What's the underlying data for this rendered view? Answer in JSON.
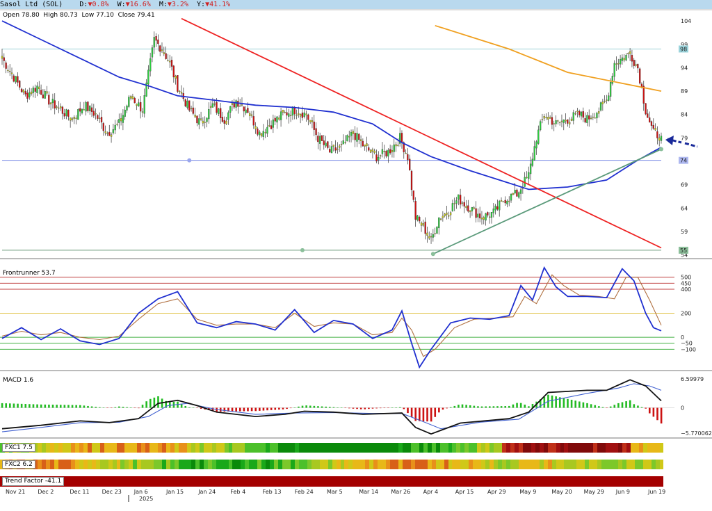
{
  "header": {
    "symbol_title": "Sasol Ltd (SOL)",
    "d_label": "D:",
    "d_value": "▼0.8%",
    "w_label": "W:",
    "w_value": "▼16.6%",
    "m_label": "M:",
    "m_value": "▼3.2%",
    "y_label": "Y:",
    "y_value": "▼41.1%"
  },
  "ohlc": {
    "open_label": "Open",
    "open": "78.80",
    "high_label": "High",
    "high": "80.73",
    "low_label": "Low",
    "low": "77.10",
    "close_label": "Close",
    "close": "79.41"
  },
  "colors": {
    "up": "#2ecc40",
    "neutral": "#c8c818",
    "down": "#cc1111",
    "ma_short": "#2030d0",
    "ma_long": "#f0a020",
    "trendline_red": "#ee2222",
    "trendline_green": "#5a9a7a",
    "fr_fast": "#2030d0",
    "fr_slow": "#b07040",
    "macd_line": "#111111",
    "signal_line": "#4060d0",
    "trend_bar": "#a40000"
  },
  "chart_data": [
    {
      "type": "candlestick",
      "panel": "price",
      "title": "Sasol Ltd (SOL)",
      "yticks": [
        104,
        99,
        94,
        89,
        84,
        79,
        74,
        69,
        64,
        59,
        54
      ],
      "ylim": [
        53.5,
        105.5
      ],
      "price_tags": [
        "98",
        "74",
        "55"
      ],
      "xticks": [
        "Nov 21",
        "Dec 2",
        "Dec 11",
        "Dec 23",
        "Jan 6",
        "Jan 15",
        "Jan 24",
        "Feb 4",
        "Feb 13",
        "Feb 24",
        "Mar 5",
        "Mar 14",
        "Mar 26",
        "Apr 4",
        "Apr 15",
        "Apr 29",
        "May 9",
        "May 20",
        "May 29",
        "Jun 9",
        "Jun 19"
      ],
      "year_label": "2025",
      "close_anchors": [
        [
          0,
          96
        ],
        [
          6,
          92
        ],
        [
          12,
          88
        ],
        [
          18,
          90
        ],
        [
          24,
          87
        ],
        [
          30,
          85
        ],
        [
          36,
          83
        ],
        [
          42,
          86
        ],
        [
          48,
          84
        ],
        [
          54,
          80
        ],
        [
          60,
          82
        ],
        [
          66,
          88
        ],
        [
          72,
          85
        ],
        [
          78,
          100
        ],
        [
          82,
          98
        ],
        [
          86,
          95
        ],
        [
          90,
          90
        ],
        [
          96,
          85
        ],
        [
          102,
          82
        ],
        [
          108,
          86
        ],
        [
          114,
          83
        ],
        [
          120,
          87
        ],
        [
          126,
          85
        ],
        [
          132,
          80
        ],
        [
          138,
          82
        ],
        [
          144,
          84
        ],
        [
          150,
          85
        ],
        [
          156,
          84
        ],
        [
          162,
          79
        ],
        [
          168,
          76
        ],
        [
          174,
          77
        ],
        [
          180,
          80
        ],
        [
          186,
          77
        ],
        [
          192,
          75
        ],
        [
          198,
          76
        ],
        [
          204,
          79
        ],
        [
          208,
          75
        ],
        [
          212,
          62
        ],
        [
          216,
          60
        ],
        [
          220,
          57
        ],
        [
          224,
          62
        ],
        [
          228,
          63
        ],
        [
          234,
          66
        ],
        [
          240,
          64
        ],
        [
          246,
          62
        ],
        [
          252,
          63
        ],
        [
          258,
          66
        ],
        [
          264,
          67
        ],
        [
          270,
          71
        ],
        [
          274,
          79
        ],
        [
          278,
          84
        ],
        [
          284,
          82
        ],
        [
          290,
          83
        ],
        [
          296,
          84
        ],
        [
          300,
          83
        ],
        [
          306,
          85
        ],
        [
          310,
          87
        ],
        [
          314,
          95
        ],
        [
          318,
          96
        ],
        [
          322,
          97
        ],
        [
          326,
          94
        ],
        [
          330,
          85
        ],
        [
          334,
          80
        ],
        [
          338,
          79.4
        ]
      ],
      "series": [
        {
          "name": "MA short",
          "points": [
            [
              0,
              104
            ],
            [
              20,
              100
            ],
            [
              40,
              96
            ],
            [
              60,
              92
            ],
            [
              76,
              90
            ],
            [
              90,
              88
            ],
            [
              110,
              87
            ],
            [
              130,
              86
            ],
            [
              150,
              85.5
            ],
            [
              170,
              84.5
            ],
            [
              190,
              82
            ],
            [
              205,
              78
            ],
            [
              220,
              75
            ],
            [
              240,
              72
            ],
            [
              255,
              70
            ],
            [
              270,
              68
            ],
            [
              290,
              68.5
            ],
            [
              310,
              70
            ],
            [
              325,
              74
            ],
            [
              338,
              77
            ]
          ]
        },
        {
          "name": "MA long",
          "points": [
            [
              222,
              103
            ],
            [
              260,
              98
            ],
            [
              290,
              93
            ],
            [
              338,
              89
            ]
          ]
        },
        {
          "name": "Trendline down",
          "points": [
            [
              92,
              104.5
            ],
            [
              338,
              55.5
            ]
          ]
        },
        {
          "name": "Trendline up",
          "points": [
            [
              221,
              54.2
            ],
            [
              338,
              76.6
            ]
          ]
        },
        {
          "name": "Horizontal 98",
          "points": [
            [
              0,
              98
            ],
            [
              338,
              98
            ]
          ]
        },
        {
          "name": "Horizontal 74",
          "points": [
            [
              0,
              74.2
            ],
            [
              338,
              74.2
            ]
          ]
        },
        {
          "name": "Horizontal 55",
          "points": [
            [
              0,
              55
            ],
            [
              338,
              55
            ]
          ]
        }
      ]
    },
    {
      "type": "line",
      "panel": "Frontrunner",
      "title": "Frontrunner 53.7",
      "yticks": [
        500,
        450,
        400,
        200,
        0,
        -50,
        -100
      ],
      "ylim": [
        -260,
        620
      ],
      "levels": [
        500,
        450,
        400,
        200,
        0,
        -50,
        -100
      ],
      "series": [
        {
          "name": "fast",
          "points": [
            [
              0,
              -10
            ],
            [
              10,
              80
            ],
            [
              20,
              -20
            ],
            [
              30,
              70
            ],
            [
              40,
              -30
            ],
            [
              50,
              -60
            ],
            [
              60,
              -10
            ],
            [
              70,
              200
            ],
            [
              80,
              320
            ],
            [
              90,
              380
            ],
            [
              100,
              120
            ],
            [
              110,
              80
            ],
            [
              120,
              130
            ],
            [
              130,
              110
            ],
            [
              140,
              60
            ],
            [
              150,
              230
            ],
            [
              160,
              40
            ],
            [
              170,
              140
            ],
            [
              180,
              110
            ],
            [
              190,
              -10
            ],
            [
              200,
              60
            ],
            [
              205,
              220
            ],
            [
              210,
              -50
            ],
            [
              214,
              -250
            ],
            [
              220,
              -100
            ],
            [
              230,
              120
            ],
            [
              240,
              160
            ],
            [
              250,
              150
            ],
            [
              260,
              180
            ],
            [
              266,
              430
            ],
            [
              272,
              310
            ],
            [
              278,
              580
            ],
            [
              284,
              420
            ],
            [
              290,
              340
            ],
            [
              300,
              340
            ],
            [
              310,
              330
            ],
            [
              318,
              570
            ],
            [
              324,
              470
            ],
            [
              330,
              200
            ],
            [
              334,
              80
            ],
            [
              338,
              53.7
            ]
          ]
        },
        {
          "name": "slow",
          "points": [
            [
              0,
              10
            ],
            [
              10,
              50
            ],
            [
              20,
              20
            ],
            [
              30,
              40
            ],
            [
              40,
              0
            ],
            [
              50,
              -20
            ],
            [
              60,
              10
            ],
            [
              70,
              150
            ],
            [
              80,
              280
            ],
            [
              90,
              320
            ],
            [
              100,
              150
            ],
            [
              110,
              100
            ],
            [
              120,
              110
            ],
            [
              130,
              110
            ],
            [
              140,
              80
            ],
            [
              150,
              200
            ],
            [
              160,
              90
            ],
            [
              170,
              120
            ],
            [
              180,
              110
            ],
            [
              190,
              20
            ],
            [
              200,
              40
            ],
            [
              205,
              160
            ],
            [
              210,
              60
            ],
            [
              216,
              -160
            ],
            [
              222,
              -100
            ],
            [
              232,
              80
            ],
            [
              242,
              150
            ],
            [
              252,
              160
            ],
            [
              262,
              170
            ],
            [
              268,
              340
            ],
            [
              274,
              280
            ],
            [
              282,
              520
            ],
            [
              288,
              430
            ],
            [
              296,
              350
            ],
            [
              306,
              340
            ],
            [
              314,
              320
            ],
            [
              320,
              500
            ],
            [
              326,
              500
            ],
            [
              332,
              310
            ],
            [
              338,
              100
            ]
          ]
        }
      ]
    },
    {
      "type": "bar_line",
      "panel": "MACD",
      "title": "MACD 1.6",
      "yticks": [
        6.59979,
        0,
        -5.770062
      ],
      "ylim": [
        -6.6,
        7.4
      ],
      "series": [
        {
          "name": "MACD",
          "points": [
            [
              0,
              -4.8
            ],
            [
              20,
              -4.0
            ],
            [
              40,
              -3.0
            ],
            [
              55,
              -3.4
            ],
            [
              70,
              -2.5
            ],
            [
              80,
              1.0
            ],
            [
              90,
              1.7
            ],
            [
              100,
              0.5
            ],
            [
              110,
              -1.0
            ],
            [
              130,
              -2.0
            ],
            [
              145,
              -1.5
            ],
            [
              155,
              -0.8
            ],
            [
              170,
              -1.0
            ],
            [
              185,
              -1.5
            ],
            [
              205,
              -1.2
            ],
            [
              212,
              -4.5
            ],
            [
              220,
              -6.0
            ],
            [
              235,
              -3.5
            ],
            [
              260,
              -2.5
            ],
            [
              270,
              -1.0
            ],
            [
              280,
              3.5
            ],
            [
              300,
              4.0
            ],
            [
              310,
              4.0
            ],
            [
              322,
              6.4
            ],
            [
              330,
              5.0
            ],
            [
              338,
              1.6
            ]
          ]
        },
        {
          "name": "Signal",
          "points": [
            [
              0,
              -5.5
            ],
            [
              20,
              -4.5
            ],
            [
              40,
              -3.4
            ],
            [
              60,
              -3.3
            ],
            [
              75,
              -2.0
            ],
            [
              85,
              0.5
            ],
            [
              95,
              1.0
            ],
            [
              110,
              -0.4
            ],
            [
              130,
              -1.5
            ],
            [
              150,
              -1.2
            ],
            [
              170,
              -1.1
            ],
            [
              190,
              -1.3
            ],
            [
              205,
              -1.3
            ],
            [
              215,
              -3.0
            ],
            [
              225,
              -4.8
            ],
            [
              245,
              -3.3
            ],
            [
              265,
              -2.6
            ],
            [
              280,
              1.5
            ],
            [
              300,
              3.3
            ],
            [
              316,
              4.5
            ],
            [
              324,
              5.5
            ],
            [
              332,
              5.0
            ],
            [
              338,
              4.0
            ]
          ]
        }
      ],
      "histogram_note": "green above zero, red below zero"
    },
    {
      "type": "heatmap",
      "panel": "FXC1",
      "title": "FXC1 7.5"
    },
    {
      "type": "heatmap",
      "panel": "FXC2",
      "title": "FXC2 6.2"
    },
    {
      "type": "bar",
      "panel": "Trend Factor",
      "title": "Trend Factor -41.1"
    }
  ]
}
